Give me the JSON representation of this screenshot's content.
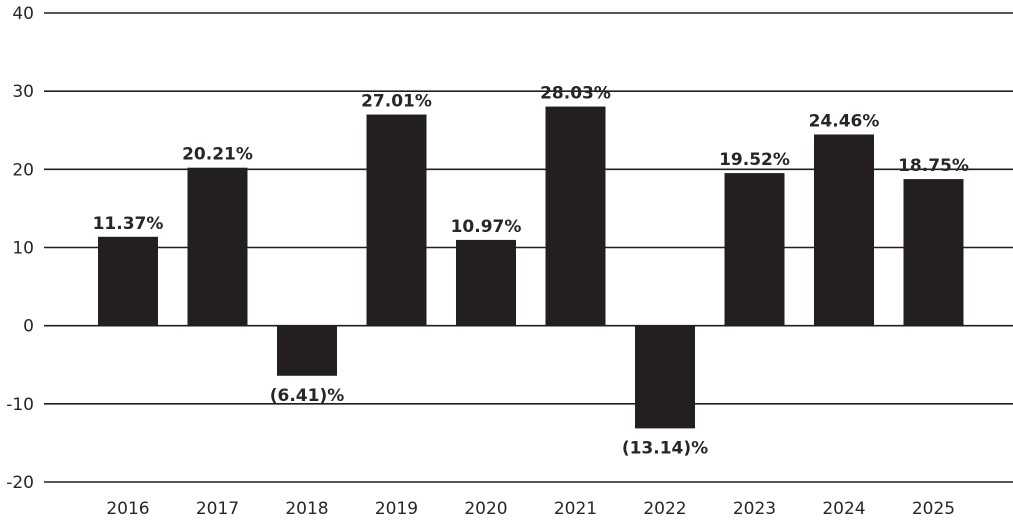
{
  "chart_data": {
    "type": "bar",
    "title": "",
    "xlabel": "",
    "ylabel": "",
    "categories": [
      "2016",
      "2017",
      "2018",
      "2019",
      "2020",
      "2021",
      "2022",
      "2023",
      "2024",
      "2025"
    ],
    "values": [
      11.37,
      20.21,
      -6.41,
      27.01,
      10.97,
      28.03,
      -13.14,
      19.52,
      24.46,
      18.75
    ],
    "data_labels": [
      "11.37%",
      "20.21%",
      "(6.41)%",
      "27.01%",
      "10.97%",
      "28.03%",
      "(13.14)%",
      "19.52%",
      "24.46%",
      "18.75%"
    ],
    "ylim": [
      -20,
      40
    ],
    "yticks": [
      40,
      30,
      20,
      10,
      0,
      -10,
      -20
    ],
    "ytick_labels": [
      "40",
      "30",
      "20",
      "10",
      "0",
      "-10",
      "-20"
    ],
    "grid": true,
    "legend": "none",
    "colors": {
      "bar": "#231f20",
      "grid": "#231f20",
      "text": "#2a2627"
    }
  }
}
